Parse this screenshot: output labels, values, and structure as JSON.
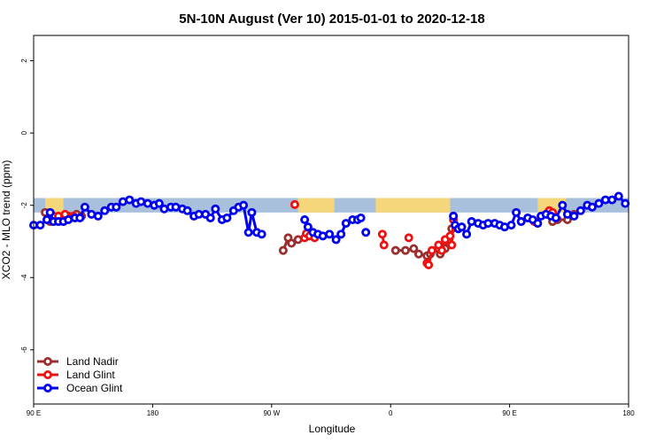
{
  "chart_data": {
    "type": "line",
    "title": "5N-10N August (Ver 10)   2015-01-01 to 2020-12-18",
    "xlabel": "Longitude",
    "ylabel": "XCO2 - MLO trend (ppm)",
    "xlim": [
      -90,
      270
    ],
    "ylim": [
      -7.5,
      2.7
    ],
    "x_ticks": [
      {
        "value": -90,
        "label": "90 E"
      },
      {
        "value": -18,
        "label": "180"
      },
      {
        "value": 54,
        "label": "90 W"
      },
      {
        "value": 126,
        "label": "0"
      },
      {
        "value": 198,
        "label": "90 E"
      },
      {
        "value": 270,
        "label": "180"
      }
    ],
    "y_ticks": [
      2,
      0,
      -2,
      -4,
      -6
    ],
    "background_band": {
      "y_range": [
        -2.2,
        -1.8
      ],
      "ocean_color": "#a8c0dc",
      "land_color": "#f5d67a",
      "land_segments": [
        [
          -83,
          -72
        ],
        [
          70,
          92
        ],
        [
          117,
          162
        ],
        [
          215,
          232
        ]
      ]
    },
    "legend_position": "bottom-left",
    "series": [
      {
        "name": "Land Nadir",
        "color": "#9b2f2f",
        "segments": [
          [
            [
              -83,
              -2.2
            ],
            [
              -80,
              -2.45
            ],
            [
              -78,
              -2.3
            ],
            [
              -71,
              -2.35
            ],
            [
              -69,
              -2.3
            ],
            [
              -64,
              -2.25
            ],
            [
              -61,
              -2.3
            ]
          ],
          [
            [
              61,
              -3.25
            ],
            [
              64,
              -2.9
            ],
            [
              66,
              -3.05
            ],
            [
              70,
              -2.95
            ]
          ],
          [
            [
              129,
              -3.25
            ],
            [
              135,
              -3.25
            ],
            [
              140,
              -3.2
            ],
            [
              143,
              -3.35
            ],
            [
              148,
              -3.4
            ],
            [
              150,
              -3.35
            ],
            [
              155,
              -3.2
            ],
            [
              156,
              -3.35
            ],
            [
              159,
              -3.2
            ],
            [
              163,
              -2.65
            ],
            [
              164,
              -2.3
            ]
          ],
          [
            [
              222,
              -2.2
            ],
            [
              224,
              -2.45
            ],
            [
              227,
              -2.4
            ],
            [
              233,
              -2.4
            ],
            [
              237,
              -2.25
            ]
          ]
        ]
      },
      {
        "name": "Land Glint",
        "color": "#ee1111",
        "segments": [
          [
            [
              -75,
              -2.3
            ],
            [
              -71,
              -2.25
            ],
            [
              -66,
              -2.3
            ]
          ],
          [
            [
              68,
              -1.98
            ]
          ],
          [
            [
              74,
              -2.9
            ],
            [
              75,
              -2.78
            ],
            [
              77,
              -2.85
            ],
            [
              80,
              -2.9
            ]
          ],
          [
            [
              121,
              -2.8
            ],
            [
              122,
              -3.1
            ]
          ],
          [
            [
              137,
              -2.9
            ]
          ],
          [
            [
              148,
              -3.6
            ],
            [
              149,
              -3.65
            ],
            [
              151,
              -3.25
            ],
            [
              155,
              -3.1
            ],
            [
              157,
              -3.25
            ],
            [
              159,
              -2.95
            ],
            [
              162,
              -2.85
            ],
            [
              163,
              -3.1
            ],
            [
              164,
              -2.4
            ]
          ],
          [
            [
              213,
              -2.45
            ]
          ],
          [
            [
              222,
              -2.15
            ],
            [
              224,
              -2.2
            ]
          ]
        ]
      },
      {
        "name": "Ocean Glint",
        "color": "#0000ee",
        "segments": [
          [
            [
              -90,
              -2.55
            ],
            [
              -86,
              -2.55
            ],
            [
              -82,
              -2.4
            ],
            [
              -80,
              -2.2
            ],
            [
              -78,
              -2.45
            ],
            [
              -75,
              -2.45
            ],
            [
              -72,
              -2.45
            ],
            [
              -69,
              -2.4
            ],
            [
              -65,
              -2.35
            ],
            [
              -62,
              -2.35
            ],
            [
              -59,
              -2.05
            ],
            [
              -55,
              -2.25
            ],
            [
              -51,
              -2.3
            ],
            [
              -47,
              -2.15
            ],
            [
              -43,
              -2.05
            ],
            [
              -40,
              -2.05
            ],
            [
              -36,
              -1.9
            ],
            [
              -32,
              -1.85
            ],
            [
              -28,
              -1.95
            ],
            [
              -25,
              -1.9
            ],
            [
              -21,
              -1.95
            ],
            [
              -17,
              -2.0
            ],
            [
              -14,
              -1.95
            ],
            [
              -11,
              -2.1
            ],
            [
              -7,
              -2.05
            ],
            [
              -4,
              -2.05
            ],
            [
              0,
              -2.1
            ],
            [
              3,
              -2.15
            ],
            [
              7,
              -2.3
            ],
            [
              10,
              -2.25
            ],
            [
              14,
              -2.25
            ],
            [
              17,
              -2.35
            ],
            [
              20,
              -2.1
            ],
            [
              24,
              -2.4
            ],
            [
              27,
              -2.35
            ],
            [
              31,
              -2.15
            ],
            [
              34,
              -2.05
            ],
            [
              37,
              -2.0
            ],
            [
              40,
              -2.75
            ],
            [
              42,
              -2.2
            ],
            [
              45,
              -2.75
            ],
            [
              48,
              -2.8
            ]
          ],
          [
            [
              74,
              -2.4
            ],
            [
              76,
              -2.6
            ],
            [
              79,
              -2.75
            ],
            [
              82,
              -2.8
            ],
            [
              85,
              -2.85
            ],
            [
              89,
              -2.8
            ],
            [
              93,
              -2.95
            ],
            [
              96,
              -2.8
            ],
            [
              99,
              -2.5
            ],
            [
              103,
              -2.4
            ],
            [
              106,
              -2.4
            ],
            [
              108,
              -2.35
            ]
          ],
          [
            [
              111,
              -2.75
            ]
          ],
          [
            [
              164,
              -2.3
            ],
            [
              165,
              -2.55
            ],
            [
              167,
              -2.65
            ],
            [
              169,
              -2.6
            ],
            [
              172,
              -2.8
            ],
            [
              175,
              -2.45
            ],
            [
              179,
              -2.5
            ],
            [
              182,
              -2.55
            ],
            [
              185,
              -2.5
            ],
            [
              189,
              -2.5
            ],
            [
              192,
              -2.55
            ],
            [
              195,
              -2.6
            ],
            [
              199,
              -2.55
            ],
            [
              202,
              -2.2
            ],
            [
              205,
              -2.45
            ],
            [
              209,
              -2.35
            ],
            [
              212,
              -2.4
            ],
            [
              215,
              -2.5
            ],
            [
              217,
              -2.3
            ],
            [
              220,
              -2.25
            ],
            [
              223,
              -2.3
            ],
            [
              226,
              -2.35
            ],
            [
              230,
              -2.0
            ],
            [
              233,
              -2.25
            ],
            [
              237,
              -2.3
            ],
            [
              241,
              -2.15
            ],
            [
              245,
              -2.0
            ],
            [
              248,
              -2.05
            ],
            [
              252,
              -1.95
            ],
            [
              256,
              -1.85
            ],
            [
              260,
              -1.85
            ],
            [
              264,
              -1.75
            ],
            [
              268,
              -1.95
            ]
          ]
        ]
      }
    ]
  }
}
